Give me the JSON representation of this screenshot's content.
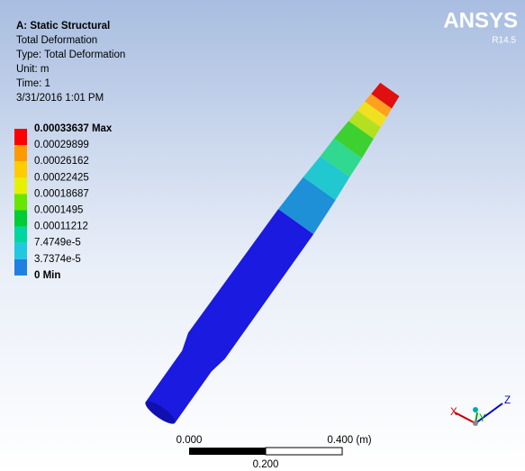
{
  "header": {
    "title": "A: Static Structural",
    "lines": [
      "Total Deformation",
      "Type: Total Deformation",
      "Unit: m",
      "Time: 1",
      "3/31/2016 1:01 PM"
    ]
  },
  "legend": {
    "labels": [
      "0.00033637 Max",
      "0.00029899",
      "0.00026162",
      "0.00022425",
      "0.00018687",
      "0.0001495",
      "0.00011212",
      "7.4749e-5",
      "3.7374e-5",
      "0 Min"
    ],
    "colors": [
      "#ff0000",
      "#ff9900",
      "#ffcc00",
      "#e6f000",
      "#66e600",
      "#00cc33",
      "#00d6a0",
      "#22c8e0",
      "#1e80e0"
    ]
  },
  "logo": {
    "name": "ANSYS",
    "version": "R14.5"
  },
  "scale_bar": {
    "left": "0.000",
    "right": "0.400 (m)",
    "middle": "0.200"
  },
  "triad": {
    "x": "X",
    "y": "Y",
    "z": "Z"
  }
}
